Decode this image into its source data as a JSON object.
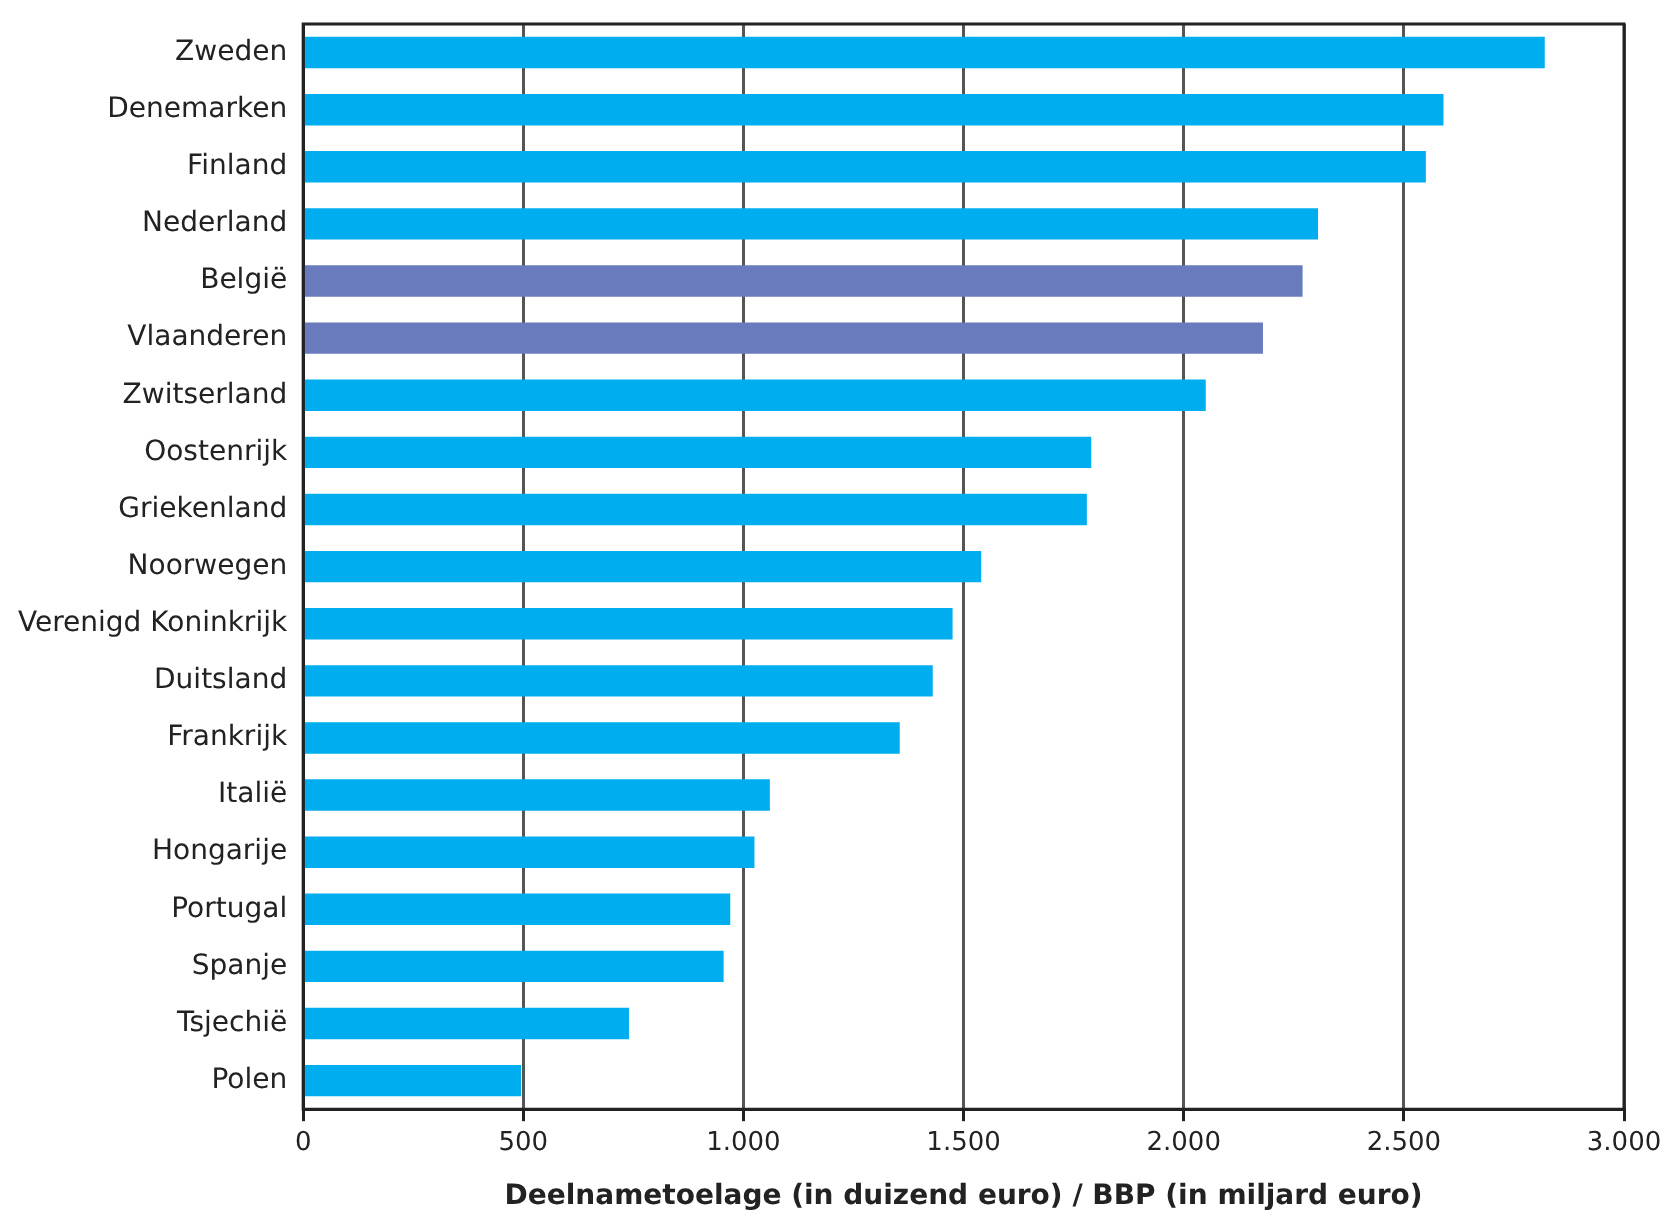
{
  "chart_data": {
    "type": "bar",
    "orientation": "horizontal",
    "xlabel": "Deelnametoelage (in duizend euro) / BBP (in miljard euro)",
    "categories": [
      "Zweden",
      "Denemarken",
      "Finland",
      "Nederland",
      "België",
      "Vlaanderen",
      "Zwitserland",
      "Oostenrijk",
      "Griekenland",
      "Noorwegen",
      "Verenigd Koninkrijk",
      "Duitsland",
      "Frankrijk",
      "Italië",
      "Hongarije",
      "Portugal",
      "Spanje",
      "Tsjechië",
      "Polen"
    ],
    "values": [
      2820,
      2590,
      2550,
      2305,
      2270,
      2180,
      2050,
      1790,
      1780,
      1540,
      1475,
      1430,
      1355,
      1060,
      1025,
      970,
      955,
      740,
      495
    ],
    "colors": [
      "#00aeef",
      "#00aeef",
      "#00aeef",
      "#00aeef",
      "#6a7bbd",
      "#6a7bbd",
      "#00aeef",
      "#00aeef",
      "#00aeef",
      "#00aeef",
      "#00aeef",
      "#00aeef",
      "#00aeef",
      "#00aeef",
      "#00aeef",
      "#00aeef",
      "#00aeef",
      "#00aeef",
      "#00aeef"
    ],
    "xlim": [
      0,
      3000
    ],
    "xticks": [
      0,
      500,
      {
        "value": 1000,
        "label": "1.000"
      },
      {
        "value": 1500,
        "label": "1.500"
      },
      {
        "value": 2000,
        "label": "2.000"
      },
      {
        "value": 2500,
        "label": "2.500"
      },
      {
        "value": 3000,
        "label": "3.000"
      }
    ],
    "grid": "x",
    "legend": false
  }
}
